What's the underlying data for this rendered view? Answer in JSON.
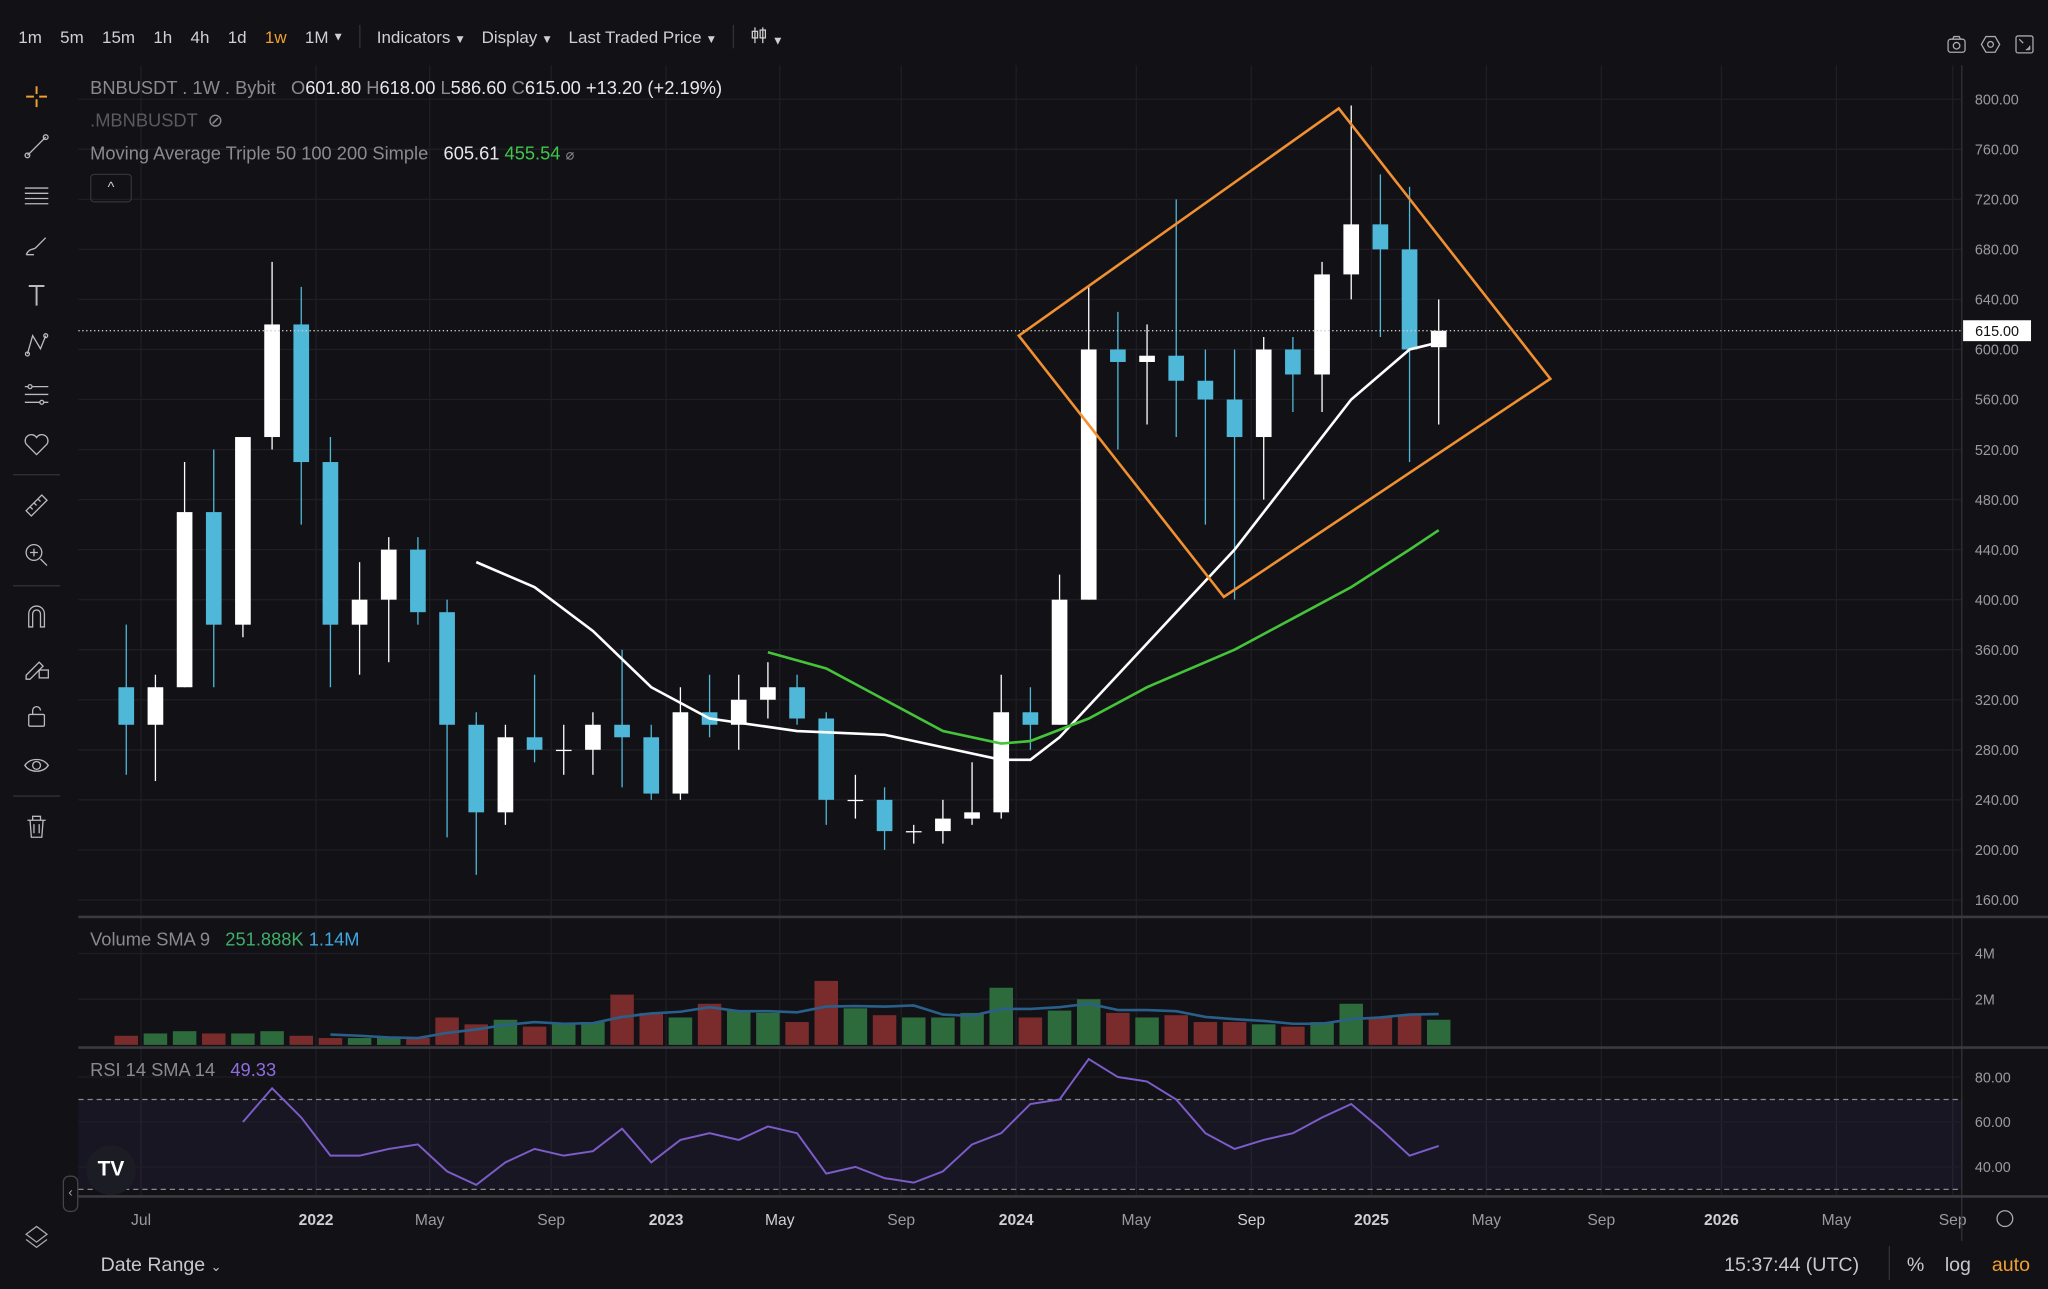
{
  "toolbar": {
    "timeframes": [
      "1m",
      "5m",
      "15m",
      "1h",
      "4h",
      "1d",
      "1w",
      "1M"
    ],
    "active_timeframe": "1w",
    "indicators_label": "Indicators",
    "display_label": "Display",
    "price_type_label": "Last Traded Price",
    "right_icons": [
      "camera-icon",
      "settings-icon",
      "fullscreen-icon"
    ]
  },
  "left_tools": [
    "crosshair-icon",
    "trendline-icon",
    "horizontal-lines-icon",
    "brush-icon",
    "text-icon",
    "pattern-icon",
    "fib-icon",
    "favorite-icon",
    "ruler-icon",
    "zoom-in-icon",
    "magnet-icon",
    "lock-drawing-icon",
    "unlock-icon",
    "eye-icon",
    "trash-icon"
  ],
  "legend": {
    "symbol": "BNBUSDT . 1W . Bybit",
    "o_label": "O",
    "o": "601.80",
    "h_label": "H",
    "h": "618.00",
    "l_label": "L",
    "l": "586.60",
    "c_label": "C",
    "c": "615.00",
    "change": "+13.20 (+2.19%)",
    "mark_symbol": ".MBNBUSDT",
    "ma_title": "Moving Average Triple 50 100 200 Simple",
    "ma50": "605.61",
    "ma100": "455.54"
  },
  "volume_legend": {
    "title": "Volume SMA 9",
    "v1": "251.888K",
    "v2": "1.14M"
  },
  "rsi_legend": {
    "title": "RSI 14 SMA 14",
    "value": "49.33"
  },
  "last_price_tag": "615.00",
  "bottom": {
    "date_range": "Date Range",
    "time": "15:37:44 (UTC)",
    "percent": "%",
    "log": "log",
    "auto": "auto"
  },
  "colors": {
    "up": "#ffffff",
    "down": "#4fb8d8",
    "ma50": "#ffffff",
    "ma100": "#45c43a",
    "drawing": "#f09030",
    "rsi": "#7c5cc8",
    "vol_up": "#2e6b3c",
    "vol_down": "#7a2b2b",
    "vol_sma": "#2a5f8a",
    "accent": "#f0a030"
  },
  "chart_data": {
    "type": "candlestick",
    "interval": "1W (approximated monthly)",
    "price_axis": {
      "ticks": [
        800,
        760,
        720,
        680,
        640,
        600,
        560,
        520,
        480,
        440,
        400,
        360,
        320,
        280,
        240,
        200,
        160
      ],
      "range": [
        160,
        800
      ]
    },
    "time_ticks": [
      "Jul",
      "2022",
      "May",
      "Sep",
      "2023",
      "May",
      "Sep",
      "2024",
      "May",
      "Sep",
      "2025",
      "May",
      "Sep",
      "2026",
      "May",
      "Sep"
    ],
    "candles": [
      [
        "2021-06",
        330,
        380,
        260,
        300
      ],
      [
        "2021-07",
        300,
        340,
        255,
        330
      ],
      [
        "2021-08",
        330,
        510,
        330,
        470
      ],
      [
        "2021-09",
        470,
        520,
        330,
        380
      ],
      [
        "2021-10",
        380,
        530,
        370,
        530
      ],
      [
        "2021-11",
        530,
        670,
        520,
        620
      ],
      [
        "2021-12",
        620,
        650,
        460,
        510
      ],
      [
        "2022-01",
        510,
        530,
        330,
        380
      ],
      [
        "2022-02",
        380,
        430,
        340,
        400
      ],
      [
        "2022-03",
        400,
        450,
        350,
        440
      ],
      [
        "2022-04",
        440,
        450,
        380,
        390
      ],
      [
        "2022-05",
        390,
        400,
        210,
        300
      ],
      [
        "2022-06",
        300,
        310,
        180,
        230
      ],
      [
        "2022-07",
        230,
        300,
        220,
        290
      ],
      [
        "2022-08",
        290,
        340,
        270,
        280
      ],
      [
        "2022-09",
        280,
        300,
        260,
        280
      ],
      [
        "2022-10",
        280,
        310,
        260,
        300
      ],
      [
        "2022-11",
        300,
        360,
        250,
        290
      ],
      [
        "2022-12",
        290,
        300,
        240,
        245
      ],
      [
        "2023-01",
        245,
        330,
        240,
        310
      ],
      [
        "2023-02",
        310,
        340,
        290,
        300
      ],
      [
        "2023-03",
        300,
        340,
        280,
        320
      ],
      [
        "2023-04",
        320,
        350,
        305,
        330
      ],
      [
        "2023-05",
        330,
        340,
        300,
        305
      ],
      [
        "2023-06",
        305,
        310,
        220,
        240
      ],
      [
        "2023-07",
        240,
        260,
        225,
        240
      ],
      [
        "2023-08",
        240,
        250,
        200,
        215
      ],
      [
        "2023-09",
        215,
        220,
        205,
        215
      ],
      [
        "2023-10",
        215,
        240,
        205,
        225
      ],
      [
        "2023-11",
        225,
        270,
        220,
        230
      ],
      [
        "2023-12",
        230,
        340,
        225,
        310
      ],
      [
        "2024-01",
        310,
        330,
        280,
        300
      ],
      [
        "2024-02",
        300,
        420,
        300,
        400
      ],
      [
        "2024-03",
        400,
        650,
        400,
        600
      ],
      [
        "2024-04",
        600,
        630,
        520,
        590
      ],
      [
        "2024-05",
        590,
        620,
        540,
        595
      ],
      [
        "2024-06",
        595,
        720,
        530,
        575
      ],
      [
        "2024-07",
        575,
        600,
        460,
        560
      ],
      [
        "2024-08",
        560,
        600,
        400,
        530
      ],
      [
        "2024-09",
        530,
        610,
        480,
        600
      ],
      [
        "2024-10",
        600,
        610,
        550,
        580
      ],
      [
        "2024-11",
        580,
        670,
        550,
        660
      ],
      [
        "2024-12",
        660,
        795,
        640,
        700
      ],
      [
        "2025-01",
        700,
        740,
        610,
        680
      ],
      [
        "2025-02",
        680,
        730,
        510,
        600
      ],
      [
        "2025-03",
        601.8,
        640,
        540,
        615
      ]
    ],
    "ma50": [
      [
        "2022-06",
        430
      ],
      [
        "2022-08",
        410
      ],
      [
        "2022-10",
        375
      ],
      [
        "2022-12",
        330
      ],
      [
        "2023-02",
        305
      ],
      [
        "2023-05",
        295
      ],
      [
        "2023-08",
        292
      ],
      [
        "2023-10",
        282
      ],
      [
        "2023-12",
        272
      ],
      [
        "2024-01",
        272
      ],
      [
        "2024-02",
        290
      ],
      [
        "2024-04",
        340
      ],
      [
        "2024-06",
        390
      ],
      [
        "2024-08",
        440
      ],
      [
        "2024-10",
        500
      ],
      [
        "2024-12",
        560
      ],
      [
        "2025-02",
        600
      ],
      [
        "2025-03",
        605.61
      ]
    ],
    "ma100": [
      [
        "2023-04",
        358
      ],
      [
        "2023-06",
        345
      ],
      [
        "2023-08",
        320
      ],
      [
        "2023-10",
        295
      ],
      [
        "2023-12",
        285
      ],
      [
        "2024-01",
        287
      ],
      [
        "2024-03",
        305
      ],
      [
        "2024-05",
        330
      ],
      [
        "2024-08",
        360
      ],
      [
        "2024-10",
        385
      ],
      [
        "2024-12",
        410
      ],
      [
        "2025-02",
        440
      ],
      [
        "2025-03",
        455.54
      ]
    ],
    "volume_axis": {
      "ticks": [
        "4M",
        "2M"
      ],
      "values": [
        4,
        2
      ]
    },
    "volume_m": [
      0.4,
      0.5,
      0.6,
      0.5,
      0.5,
      0.6,
      0.4,
      0.3,
      0.3,
      0.3,
      0.3,
      1.2,
      0.9,
      1.1,
      0.8,
      0.9,
      1.0,
      2.2,
      1.4,
      1.2,
      1.8,
      1.5,
      1.4,
      1.0,
      2.8,
      1.6,
      1.3,
      1.2,
      1.2,
      1.4,
      2.5,
      1.2,
      1.5,
      2.0,
      1.4,
      1.2,
      1.3,
      1.0,
      1.0,
      0.9,
      0.8,
      1.0,
      1.8,
      1.2,
      1.3,
      1.1
    ],
    "rsi_axis": {
      "ticks": [
        80,
        60,
        40
      ],
      "bands": [
        70,
        30
      ]
    },
    "rsi": [
      [
        "2021-10",
        60
      ],
      [
        "2021-11",
        75
      ],
      [
        "2021-12",
        62
      ],
      [
        "2022-01",
        45
      ],
      [
        "2022-02",
        45
      ],
      [
        "2022-03",
        48
      ],
      [
        "2022-04",
        50
      ],
      [
        "2022-05",
        38
      ],
      [
        "2022-06",
        32
      ],
      [
        "2022-07",
        42
      ],
      [
        "2022-08",
        48
      ],
      [
        "2022-09",
        45
      ],
      [
        "2022-10",
        47
      ],
      [
        "2022-11",
        57
      ],
      [
        "2022-12",
        42
      ],
      [
        "2023-01",
        52
      ],
      [
        "2023-02",
        55
      ],
      [
        "2023-03",
        52
      ],
      [
        "2023-04",
        58
      ],
      [
        "2023-05",
        55
      ],
      [
        "2023-06",
        37
      ],
      [
        "2023-07",
        40
      ],
      [
        "2023-08",
        35
      ],
      [
        "2023-09",
        33
      ],
      [
        "2023-10",
        38
      ],
      [
        "2023-11",
        50
      ],
      [
        "2023-12",
        55
      ],
      [
        "2024-01",
        68
      ],
      [
        "2024-02",
        70
      ],
      [
        "2024-03",
        88
      ],
      [
        "2024-04",
        80
      ],
      [
        "2024-05",
        78
      ],
      [
        "2024-06",
        70
      ],
      [
        "2024-07",
        55
      ],
      [
        "2024-08",
        48
      ],
      [
        "2024-09",
        52
      ],
      [
        "2024-10",
        55
      ],
      [
        "2024-11",
        62
      ],
      [
        "2024-12",
        68
      ],
      [
        "2025-01",
        57
      ],
      [
        "2025-02",
        45
      ],
      [
        "2025-03",
        49.33
      ]
    ]
  }
}
